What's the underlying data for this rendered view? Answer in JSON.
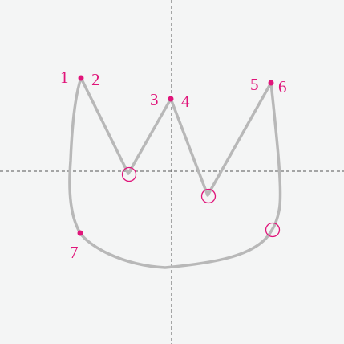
{
  "diagram": {
    "colors": {
      "background": "#f4f5f5",
      "guide": "#555555",
      "stroke": "#b8b8b8",
      "marker": "#e0157a"
    },
    "point_labels": [
      "1",
      "2",
      "3",
      "4",
      "5",
      "6",
      "7"
    ]
  }
}
